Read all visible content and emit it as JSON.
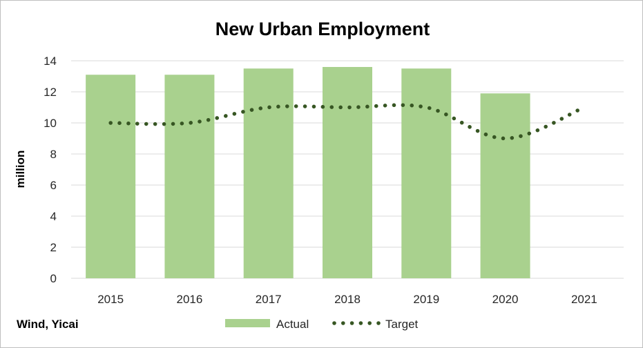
{
  "chart_data": {
    "type": "bar",
    "title": "New Urban Employment",
    "ylabel": "million",
    "xlabel": "",
    "categories": [
      "2015",
      "2016",
      "2017",
      "2018",
      "2019",
      "2020",
      "2021"
    ],
    "ylim": [
      0,
      14
    ],
    "yticks": [
      0,
      2,
      4,
      6,
      8,
      10,
      12,
      14
    ],
    "grid": true,
    "legend_position": "bottom",
    "source": "Wind, Yicai",
    "series": [
      {
        "name": "Actual",
        "kind": "bar",
        "color": "#a9d18e",
        "values": [
          13.1,
          13.1,
          13.5,
          13.6,
          13.5,
          11.9,
          null
        ]
      },
      {
        "name": "Target",
        "kind": "line",
        "style": "dotted",
        "color": "#375623",
        "values": [
          10,
          10,
          11,
          11,
          11,
          9,
          11
        ]
      }
    ]
  }
}
